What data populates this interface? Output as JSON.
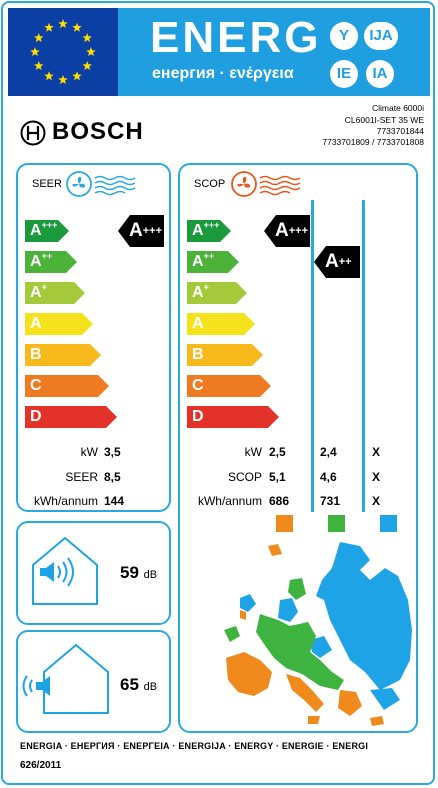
{
  "header": {
    "title": "ENERG",
    "subtitle": "енергия · ενέργεια",
    "languages": [
      "Y",
      "IJA",
      "IE",
      "IA"
    ]
  },
  "brand": "BOSCH",
  "model": {
    "line1": "Climate 6000i",
    "line2": "CL6001I-SET 35 WE",
    "line3": "7733701844",
    "line4": "7733701809 / 7733701808"
  },
  "seer": {
    "label": "SEER",
    "rating": {
      "letter": "A",
      "plus": "+++"
    },
    "rows": [
      {
        "label": "kW",
        "value": "3,5"
      },
      {
        "label": "SEER",
        "value": "8,5"
      },
      {
        "label": "kWh/annum",
        "value": "144"
      }
    ]
  },
  "scop": {
    "label": "SCOP",
    "rating_warm": {
      "letter": "A",
      "plus": "+++"
    },
    "rating_avg": {
      "letter": "A",
      "plus": "++"
    },
    "rows": [
      {
        "label": "kW",
        "warm": "2,5",
        "average": "2,4",
        "cold": "X"
      },
      {
        "label": "SCOP",
        "warm": "5,1",
        "average": "4,6",
        "cold": "X"
      },
      {
        "label": "kWh/annum",
        "warm": "686",
        "average": "731",
        "cold": "X"
      }
    ],
    "zone_colors": {
      "warm": "#f08a1c",
      "average": "#3fb33f",
      "cold": "#1ea4e6"
    }
  },
  "scale": [
    {
      "letter": "A",
      "plus": "+++",
      "color": "#1a9a3c"
    },
    {
      "letter": "A",
      "plus": "++",
      "color": "#4cb23a"
    },
    {
      "letter": "A",
      "plus": "+",
      "color": "#a4c93a"
    },
    {
      "letter": "A",
      "plus": "",
      "color": "#f4e21c"
    },
    {
      "letter": "B",
      "plus": "",
      "color": "#f7b91b"
    },
    {
      "letter": "C",
      "plus": "",
      "color": "#ee7a22"
    },
    {
      "letter": "D",
      "plus": "",
      "color": "#e3322a"
    }
  ],
  "noise": {
    "indoor": {
      "value": "59",
      "unit": "dB"
    },
    "outdoor": {
      "value": "65",
      "unit": "dB"
    }
  },
  "footer": {
    "languages": "ENERGIA · ЕНЕРГИЯ · ΕΝΕΡΓΕΙΑ · ENERGIJA · ENERGY · ENERGIE · ENERGI",
    "regulation": "626/2011"
  }
}
